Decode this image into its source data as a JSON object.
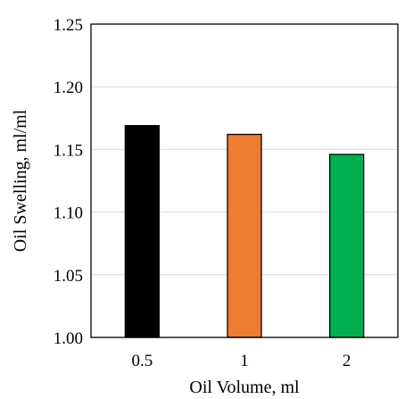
{
  "chart_data": {
    "type": "bar",
    "categories": [
      "0.5",
      "1",
      "2"
    ],
    "values": [
      1.169,
      1.162,
      1.146
    ],
    "colors": [
      "#000000",
      "#ed7d31",
      "#00b050"
    ],
    "xlabel": "Oil Volume, ml",
    "ylabel": "Oil Swelling, ml/ml",
    "ylim": [
      1.0,
      1.25
    ],
    "yticks": [
      "1.00",
      "1.05",
      "1.10",
      "1.15",
      "1.20",
      "1.25"
    ],
    "grid": true,
    "legend": "none"
  }
}
